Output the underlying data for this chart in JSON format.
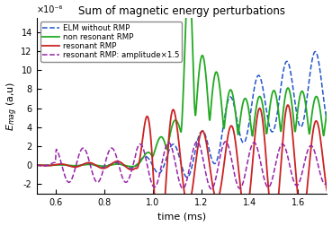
{
  "title": "Sum of magnetic energy perturbations",
  "xlabel": "time (ms)",
  "ylabel_display": "$E_{mag}$ (a,u)",
  "xlim": [
    0.52,
    1.72
  ],
  "ylim": [
    -3e-06,
    1.55e-05
  ],
  "ytick_scale": 1e-06,
  "yticks": [
    -2,
    0,
    2,
    4,
    6,
    8,
    10,
    12,
    14
  ],
  "xticks": [
    0.6,
    0.8,
    1.0,
    1.2,
    1.4,
    1.6
  ],
  "legend": [
    {
      "label": "ELM without RMP",
      "color": "#2255cc",
      "ls": "--",
      "lw": 1.1
    },
    {
      "label": "non resonant RMP",
      "color": "#22aa22",
      "ls": "-",
      "lw": 1.3
    },
    {
      "label": "resonant RMP",
      "color": "#cc2222",
      "ls": "-",
      "lw": 1.3
    },
    {
      "label": "resonant RMP: amplitude×1.5",
      "color": "#9922aa",
      "ls": "--",
      "lw": 1.1
    }
  ],
  "scale_label": "×10⁻⁶",
  "t_start": 0.52,
  "t_end": 1.72,
  "n_points": 1200
}
